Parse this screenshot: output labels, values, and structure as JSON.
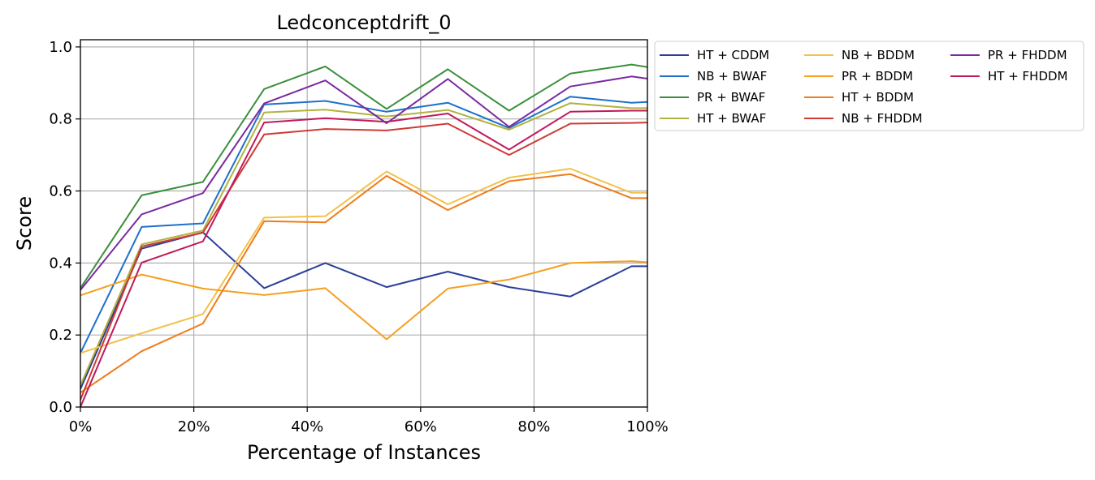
{
  "chart_data": {
    "type": "line",
    "title": "Ledconceptdrift_0",
    "xlabel": "Percentage of Instances",
    "ylabel": "Score",
    "xlim": [
      0,
      100
    ],
    "ylim": [
      0,
      1.02
    ],
    "x_ticks": [
      0,
      20,
      40,
      60,
      80,
      100
    ],
    "x_tick_labels": [
      "0%",
      "20%",
      "40%",
      "60%",
      "80%",
      "100%"
    ],
    "y_ticks": [
      0,
      0.2,
      0.4,
      0.6,
      0.8,
      1.0
    ],
    "y_tick_labels": [
      "0.0",
      "0.2",
      "0.4",
      "0.6",
      "0.8",
      "1.0"
    ],
    "grid": true,
    "legend_position": "outside-right-top",
    "legend_columns": 3,
    "x": [
      0,
      10.8,
      21.6,
      32.4,
      43.2,
      54,
      64.8,
      75.6,
      86.4,
      97.2,
      100
    ],
    "series": [
      {
        "name": "HT + CDDM",
        "color": "#2b3f99",
        "values": [
          0.05,
          0.44,
          0.485,
          0.33,
          0.4,
          0.333,
          0.376,
          0.333,
          0.307,
          0.391,
          0.391
        ]
      },
      {
        "name": "NB + BWAF",
        "color": "#1f70c8",
        "values": [
          0.15,
          0.5,
          0.51,
          0.84,
          0.85,
          0.82,
          0.845,
          0.775,
          0.862,
          0.845,
          0.847
        ]
      },
      {
        "name": "PR + BWAF",
        "color": "#3b8f3b",
        "values": [
          0.33,
          0.588,
          0.625,
          0.883,
          0.946,
          0.828,
          0.938,
          0.823,
          0.926,
          0.951,
          0.944
        ]
      },
      {
        "name": "HT + BWAF",
        "color": "#b2b23f",
        "values": [
          0.06,
          0.452,
          0.49,
          0.818,
          0.826,
          0.807,
          0.825,
          0.77,
          0.844,
          0.83,
          0.83
        ]
      },
      {
        "name": "NB + BDDM",
        "color": "#f2c14a",
        "values": [
          0.15,
          0.205,
          0.258,
          0.526,
          0.53,
          0.654,
          0.563,
          0.637,
          0.662,
          0.595,
          0.595
        ]
      },
      {
        "name": "PR + BDDM",
        "color": "#f5a01f",
        "values": [
          0.31,
          0.368,
          0.329,
          0.311,
          0.33,
          0.188,
          0.329,
          0.354,
          0.4,
          0.405,
          0.402
        ]
      },
      {
        "name": "HT + BDDM",
        "color": "#f07c1a",
        "values": [
          0.04,
          0.155,
          0.232,
          0.516,
          0.513,
          0.642,
          0.547,
          0.627,
          0.647,
          0.58,
          0.58
        ]
      },
      {
        "name": "NB + FHDDM",
        "color": "#cf3a33",
        "values": [
          0.02,
          0.446,
          0.484,
          0.757,
          0.772,
          0.768,
          0.787,
          0.7,
          0.787,
          0.789,
          0.79
        ]
      },
      {
        "name": "PR + FHDDM",
        "color": "#7a2aa0",
        "values": [
          0.325,
          0.535,
          0.594,
          0.843,
          0.907,
          0.788,
          0.911,
          0.778,
          0.89,
          0.918,
          0.912
        ]
      },
      {
        "name": "HT + FHDDM",
        "color": "#c0195c",
        "values": [
          0.0,
          0.401,
          0.46,
          0.79,
          0.802,
          0.792,
          0.815,
          0.715,
          0.82,
          0.823,
          0.823
        ]
      }
    ]
  }
}
